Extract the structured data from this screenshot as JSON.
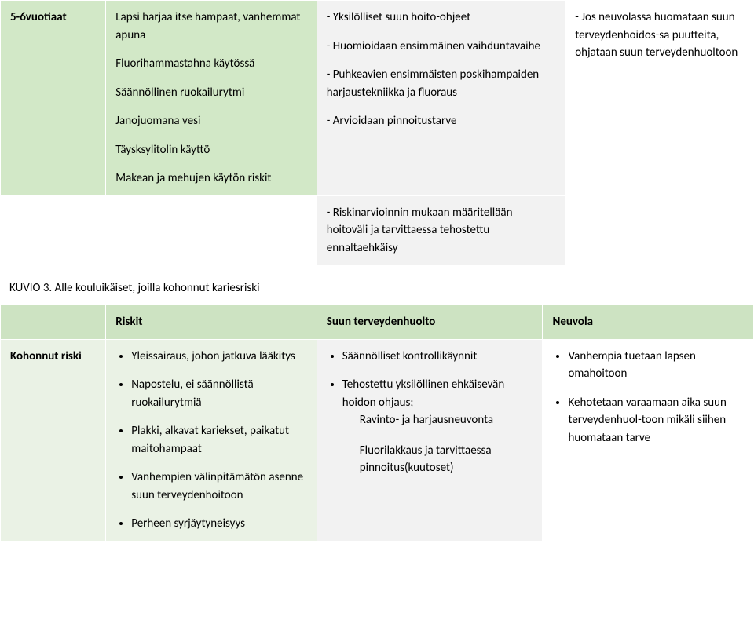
{
  "table1": {
    "row1": {
      "c1": "5-6vuotiaat",
      "c2": {
        "p1": "Lapsi harjaa itse hampaat, vanhemmat apuna",
        "p2": "Fluorihammastahna käytössä",
        "p3": "Säännöllinen ruokailurytmi",
        "p4": "Janojuomana vesi",
        "p5": "Täysksylitolin käyttö",
        "p6": "Makean ja mehujen käytön riskit"
      },
      "c3": {
        "p1": "- Yksilölliset suun hoito-ohjeet",
        "p2": "- Huomioidaan ensimmäinen vaihduntavaihe",
        "p3": "- Puhkeavien ensimmäisten poskihampaiden harjaustekniikka ja fluoraus",
        "p4": "- Arvioidaan pinnoitustarve"
      },
      "c4": "- Jos neuvolassa huomataan suun terveydenhoidos-sa puutteita, ohjataan suun terveydenhuoltoon"
    },
    "row2": {
      "c3": "- Riskinarvioinnin mukaan määritellään hoitoväli ja tarvittaessa tehostettu ennaltaehkäisy"
    }
  },
  "caption": "KUVIO 3. Alle kouluikäiset, joilla kohonnut kariesriski",
  "table2": {
    "headers": {
      "h2": "Riskit",
      "h3": "Suun terveydenhuolto",
      "h4": "Neuvola"
    },
    "row": {
      "c1": "Kohonnut riski",
      "c2": {
        "i1": "Yleissairaus, johon jatkuva lääkitys",
        "i2": "Napostelu, ei säännöllistä ruokailurytmiä",
        "i3": "Plakki, alkavat kariekset, paikatut maitohampaat",
        "i4": "Vanhempien välinpitämätön asenne suun terveydenhoitoon",
        "i5": "Perheen syrjäytyneisyys"
      },
      "c3": {
        "i1": "Säännölliset kontrollikäynnit",
        "i2": "Tehostettu yksilöllinen ehkäisevän hoidon ohjaus;",
        "s1": "Ravinto- ja harjausneuvonta",
        "s2": "Fluorilakkaus ja tarvittaessa pinnoitus(kuutoset)"
      },
      "c4": {
        "i1": "Vanhempia tuetaan lapsen omahoitoon",
        "i2": "Kehotetaan varaamaan aika suun terveydenhuol-toon mikäli siihen huomataan tarve"
      }
    }
  }
}
